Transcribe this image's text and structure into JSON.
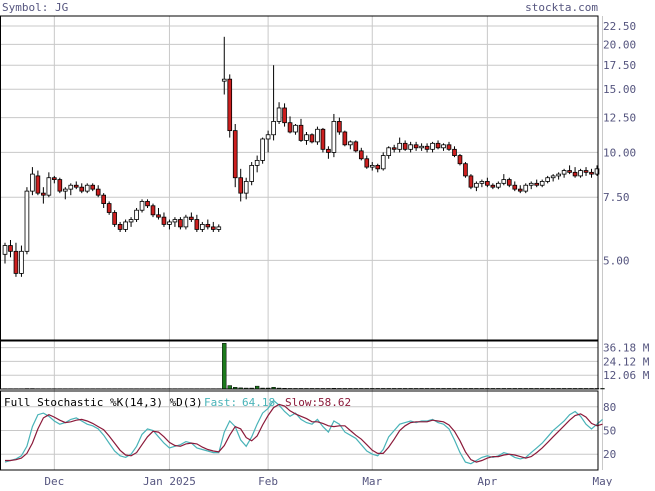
{
  "header": {
    "symbol_label": "Symbol: JG",
    "site": "stockta.com"
  },
  "colors": {
    "up_candle_fill": "#ffffff",
    "down_candle_fill": "#cc1f1f",
    "volume_bar": "#1c7a1c",
    "fast_line": "#49b3b8",
    "slow_line": "#8b1a3a",
    "grid": "#c8c8c8",
    "frame": "#000000",
    "text": "#55557f"
  },
  "chart_data": [
    {
      "type": "candlestick",
      "name": "price",
      "ylim": [
        3.0,
        24.0
      ],
      "y_scale": "log",
      "y_ticks": [
        {
          "value": 22.5,
          "label": "22.50"
        },
        {
          "value": 20.0,
          "label": "20.00"
        },
        {
          "value": 17.5,
          "label": "17.50"
        },
        {
          "value": 15.0,
          "label": "15.00"
        },
        {
          "value": 12.5,
          "label": "12.50"
        },
        {
          "value": 10.0,
          "label": "10.00"
        },
        {
          "value": 7.5,
          "label": "7.50"
        },
        {
          "value": 5.0,
          "label": "5.00"
        }
      ],
      "x_ticks": [
        {
          "index": 9,
          "label": "Dec"
        },
        {
          "index": 30,
          "label": "Jan 2025"
        },
        {
          "index": 48,
          "label": "Feb"
        },
        {
          "index": 67,
          "label": "Mar"
        },
        {
          "index": 88,
          "label": "Apr"
        },
        {
          "index": 109,
          "label": "May"
        }
      ],
      "grid": true,
      "ohlc": [
        [
          5.2,
          5.6,
          4.9,
          5.5
        ],
        [
          5.5,
          5.7,
          5.1,
          5.3
        ],
        [
          5.3,
          5.6,
          4.5,
          4.6
        ],
        [
          4.6,
          5.5,
          4.5,
          5.3
        ],
        [
          5.3,
          8.0,
          5.2,
          7.8
        ],
        [
          7.8,
          9.1,
          7.6,
          8.7
        ],
        [
          8.6,
          8.9,
          7.6,
          7.7
        ],
        [
          7.7,
          8.0,
          7.2,
          7.6
        ],
        [
          7.6,
          8.8,
          7.5,
          8.5
        ],
        [
          8.5,
          8.6,
          8.2,
          8.4
        ],
        [
          8.4,
          8.5,
          7.7,
          7.8
        ],
        [
          7.8,
          8.0,
          7.4,
          7.9
        ],
        [
          7.9,
          8.2,
          7.6,
          8.1
        ],
        [
          8.1,
          8.3,
          7.9,
          8.0
        ],
        [
          8.0,
          8.2,
          7.7,
          7.8
        ],
        [
          7.8,
          8.2,
          7.7,
          8.1
        ],
        [
          8.1,
          8.2,
          7.8,
          7.9
        ],
        [
          7.9,
          8.1,
          7.5,
          7.6
        ],
        [
          7.6,
          7.7,
          7.0,
          7.2
        ],
        [
          7.2,
          7.3,
          6.7,
          6.8
        ],
        [
          6.8,
          6.9,
          6.2,
          6.3
        ],
        [
          6.3,
          6.4,
          6.0,
          6.1
        ],
        [
          6.1,
          6.5,
          6.0,
          6.4
        ],
        [
          6.4,
          6.6,
          6.2,
          6.5
        ],
        [
          6.5,
          7.0,
          6.4,
          6.9
        ],
        [
          6.9,
          7.4,
          6.8,
          7.3
        ],
        [
          7.3,
          7.4,
          7.0,
          7.1
        ],
        [
          7.1,
          7.2,
          6.6,
          6.7
        ],
        [
          6.7,
          7.0,
          6.5,
          6.6
        ],
        [
          6.6,
          6.8,
          6.2,
          6.3
        ],
        [
          6.3,
          6.5,
          6.1,
          6.4
        ],
        [
          6.4,
          6.6,
          6.2,
          6.5
        ],
        [
          6.5,
          6.6,
          6.1,
          6.2
        ],
        [
          6.2,
          6.7,
          6.1,
          6.6
        ],
        [
          6.6,
          6.8,
          6.4,
          6.5
        ],
        [
          6.5,
          6.7,
          6.0,
          6.1
        ],
        [
          6.1,
          6.4,
          6.0,
          6.3
        ],
        [
          6.3,
          6.5,
          6.1,
          6.2
        ],
        [
          6.2,
          6.4,
          6.0,
          6.1
        ],
        [
          6.1,
          6.3,
          6.0,
          6.2
        ],
        [
          15.8,
          21.0,
          14.5,
          16.0
        ],
        [
          16.0,
          16.5,
          11.0,
          11.5
        ],
        [
          11.5,
          12.0,
          8.0,
          8.5
        ],
        [
          8.5,
          9.0,
          7.3,
          7.7
        ],
        [
          7.7,
          8.5,
          7.4,
          8.3
        ],
        [
          8.3,
          9.4,
          8.1,
          9.2
        ],
        [
          9.2,
          9.8,
          8.8,
          9.5
        ],
        [
          9.5,
          11.0,
          9.3,
          10.9
        ],
        [
          10.9,
          11.5,
          10.0,
          11.2
        ],
        [
          11.2,
          17.5,
          10.8,
          12.2
        ],
        [
          12.2,
          13.8,
          12.0,
          13.3
        ],
        [
          13.3,
          13.7,
          11.8,
          12.1
        ],
        [
          12.1,
          12.6,
          11.3,
          11.4
        ],
        [
          11.4,
          12.0,
          11.2,
          11.9
        ],
        [
          11.9,
          12.4,
          10.7,
          10.8
        ],
        [
          10.8,
          11.4,
          10.5,
          11.2
        ],
        [
          11.2,
          11.3,
          10.6,
          10.7
        ],
        [
          10.7,
          11.8,
          10.5,
          11.6
        ],
        [
          11.6,
          11.7,
          10.0,
          10.2
        ],
        [
          10.2,
          10.4,
          9.6,
          10.0
        ],
        [
          10.0,
          12.8,
          9.7,
          12.2
        ],
        [
          12.2,
          12.5,
          11.2,
          11.4
        ],
        [
          11.4,
          11.5,
          10.4,
          10.5
        ],
        [
          10.5,
          10.8,
          10.2,
          10.7
        ],
        [
          10.7,
          10.8,
          10.0,
          10.1
        ],
        [
          10.1,
          10.3,
          9.5,
          9.6
        ],
        [
          9.6,
          9.8,
          9.0,
          9.1
        ],
        [
          9.1,
          9.4,
          8.9,
          9.2
        ],
        [
          9.2,
          9.3,
          8.8,
          9.0
        ],
        [
          9.0,
          10.0,
          8.9,
          9.8
        ],
        [
          9.8,
          10.4,
          9.6,
          10.3
        ],
        [
          10.3,
          10.5,
          10.0,
          10.2
        ],
        [
          10.2,
          11.0,
          10.0,
          10.6
        ],
        [
          10.6,
          10.8,
          10.1,
          10.2
        ],
        [
          10.2,
          10.7,
          10.0,
          10.5
        ],
        [
          10.5,
          10.7,
          10.1,
          10.3
        ],
        [
          10.3,
          10.6,
          10.1,
          10.4
        ],
        [
          10.4,
          10.6,
          10.0,
          10.2
        ],
        [
          10.2,
          10.7,
          10.0,
          10.6
        ],
        [
          10.6,
          10.8,
          10.2,
          10.3
        ],
        [
          10.3,
          10.6,
          10.1,
          10.5
        ],
        [
          10.5,
          10.7,
          10.1,
          10.2
        ],
        [
          10.2,
          10.4,
          9.7,
          9.8
        ],
        [
          9.8,
          9.9,
          9.2,
          9.3
        ],
        [
          9.3,
          9.4,
          8.5,
          8.6
        ],
        [
          8.6,
          8.7,
          7.9,
          8.0
        ],
        [
          8.0,
          8.3,
          7.8,
          8.2
        ],
        [
          8.2,
          8.4,
          8.0,
          8.3
        ],
        [
          8.3,
          8.5,
          8.0,
          8.1
        ],
        [
          8.1,
          8.2,
          7.9,
          8.0
        ],
        [
          8.0,
          8.3,
          7.9,
          8.2
        ],
        [
          8.2,
          8.7,
          8.1,
          8.4
        ],
        [
          8.4,
          8.5,
          8.0,
          8.1
        ],
        [
          8.1,
          8.3,
          7.8,
          7.9
        ],
        [
          7.9,
          8.1,
          7.7,
          7.8
        ],
        [
          7.8,
          8.2,
          7.7,
          8.1
        ],
        [
          8.1,
          8.3,
          7.9,
          8.2
        ],
        [
          8.2,
          8.4,
          8.0,
          8.1
        ],
        [
          8.1,
          8.4,
          8.0,
          8.3
        ],
        [
          8.3,
          8.6,
          8.2,
          8.5
        ],
        [
          8.5,
          8.7,
          8.3,
          8.6
        ],
        [
          8.6,
          8.8,
          8.4,
          8.7
        ],
        [
          8.7,
          9.0,
          8.5,
          8.9
        ],
        [
          8.9,
          9.2,
          8.7,
          8.8
        ],
        [
          8.8,
          9.1,
          8.5,
          8.6
        ],
        [
          8.6,
          9.0,
          8.5,
          8.9
        ],
        [
          8.9,
          9.1,
          8.6,
          8.8
        ],
        [
          8.8,
          9.0,
          8.5,
          8.7
        ],
        [
          8.7,
          9.2,
          8.6,
          9.0
        ]
      ]
    },
    {
      "type": "bar",
      "name": "volume",
      "unit": "M",
      "ylim": [
        0,
        42
      ],
      "y_ticks": [
        {
          "value": 36.18,
          "label": "36.18 M"
        },
        {
          "value": 24.12,
          "label": "24.12 M"
        },
        {
          "value": 12.06,
          "label": "12.06 M"
        }
      ],
      "values": [
        0.3,
        0.3,
        0.3,
        0.3,
        0.4,
        0.4,
        0.3,
        0.3,
        0.3,
        0.3,
        0.3,
        0.3,
        0.3,
        0.3,
        0.3,
        0.3,
        0.3,
        0.3,
        0.3,
        0.3,
        0.3,
        0.3,
        0.3,
        0.3,
        0.3,
        0.3,
        0.3,
        0.3,
        0.3,
        0.3,
        0.3,
        0.3,
        0.3,
        0.3,
        0.3,
        0.3,
        0.3,
        0.3,
        0.3,
        0.3,
        40.0,
        3.0,
        1.5,
        1.0,
        0.8,
        0.8,
        2.5,
        0.8,
        0.8,
        1.5,
        0.8,
        0.6,
        0.5,
        0.5,
        0.5,
        0.5,
        0.5,
        0.5,
        0.5,
        0.5,
        0.6,
        0.5,
        0.5,
        0.5,
        0.5,
        0.5,
        0.5,
        0.5,
        0.5,
        0.5,
        0.5,
        0.5,
        0.5,
        0.5,
        0.5,
        0.5,
        0.5,
        0.5,
        0.5,
        0.5,
        0.5,
        0.5,
        0.5,
        0.5,
        0.5,
        0.5,
        0.5,
        0.5,
        0.5,
        0.5,
        0.5,
        0.5,
        0.5,
        0.5,
        0.5,
        0.5,
        0.5,
        0.5,
        0.5,
        0.5,
        0.5,
        0.5,
        0.5,
        0.5,
        0.5,
        0.5,
        0.5,
        0.5,
        0.5,
        0.5
      ]
    },
    {
      "type": "line",
      "name": "stochastic",
      "title": "Full Stochastic %K(14,3) %D(3)",
      "ylim": [
        0,
        100
      ],
      "y_ticks": [
        {
          "value": 80,
          "label": "80"
        },
        {
          "value": 50,
          "label": "50"
        },
        {
          "value": 20,
          "label": "20"
        }
      ],
      "series": [
        {
          "name": "Fast",
          "legend_label": "Fast:",
          "last_value": "64.18",
          "values": [
            10,
            12,
            14,
            18,
            30,
            55,
            70,
            72,
            68,
            62,
            58,
            60,
            64,
            66,
            62,
            58,
            56,
            52,
            44,
            34,
            24,
            18,
            16,
            20,
            30,
            45,
            52,
            50,
            42,
            34,
            28,
            30,
            32,
            36,
            34,
            28,
            26,
            24,
            22,
            22,
            48,
            62,
            55,
            38,
            30,
            42,
            58,
            72,
            78,
            88,
            82,
            74,
            68,
            72,
            64,
            60,
            58,
            64,
            55,
            48,
            62,
            58,
            48,
            44,
            40,
            32,
            24,
            20,
            18,
            26,
            42,
            50,
            58,
            60,
            62,
            60,
            62,
            62,
            64,
            60,
            58,
            52,
            38,
            22,
            10,
            8,
            12,
            16,
            18,
            16,
            18,
            22,
            20,
            16,
            14,
            16,
            22,
            28,
            34,
            42,
            50,
            56,
            62,
            70,
            74,
            68,
            58,
            52,
            58,
            64
          ]
        },
        {
          "name": "Slow",
          "legend_label": "Slow:",
          "last_value": "58.62",
          "values": [
            12,
            12,
            13,
            15,
            21,
            34,
            52,
            66,
            70,
            67,
            63,
            60,
            61,
            63,
            64,
            62,
            59,
            55,
            51,
            43,
            34,
            25,
            19,
            18,
            22,
            32,
            42,
            49,
            48,
            42,
            35,
            31,
            30,
            33,
            34,
            33,
            29,
            26,
            24,
            23,
            31,
            44,
            55,
            52,
            41,
            37,
            43,
            57,
            69,
            79,
            83,
            81,
            75,
            71,
            68,
            65,
            61,
            61,
            59,
            56,
            55,
            56,
            56,
            50,
            44,
            39,
            32,
            25,
            21,
            21,
            29,
            39,
            50,
            56,
            60,
            61,
            61,
            61,
            63,
            62,
            61,
            57,
            49,
            37,
            23,
            13,
            10,
            12,
            15,
            17,
            17,
            19,
            20,
            19,
            17,
            15,
            17,
            22,
            28,
            35,
            42,
            49,
            56,
            63,
            69,
            71,
            67,
            59,
            56,
            58
          ]
        }
      ]
    }
  ]
}
